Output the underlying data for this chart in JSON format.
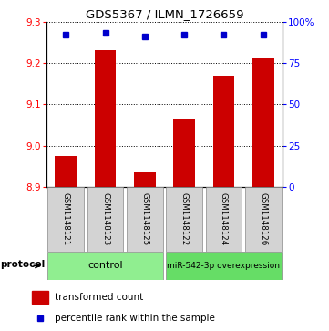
{
  "title": "GDS5367 / ILMN_1726659",
  "samples": [
    "GSM1148121",
    "GSM1148123",
    "GSM1148125",
    "GSM1148122",
    "GSM1148124",
    "GSM1148126"
  ],
  "transformed_counts": [
    8.975,
    9.23,
    8.935,
    9.065,
    9.17,
    9.21
  ],
  "percentile_ranks": [
    92,
    93,
    91,
    92,
    92,
    92
  ],
  "ylim_left": [
    8.9,
    9.3
  ],
  "ylim_right": [
    0,
    100
  ],
  "yticks_left": [
    8.9,
    9.0,
    9.1,
    9.2,
    9.3
  ],
  "yticks_right": [
    0,
    25,
    50,
    75,
    100
  ],
  "bar_color": "#cc0000",
  "marker_color": "#0000cc",
  "control_color": "#90ee90",
  "overexp_color": "#66dd66",
  "control_label": "control",
  "overexp_label": "miR-542-3p overexpression",
  "protocol_label": "protocol",
  "legend_bar_label": "transformed count",
  "legend_marker_label": "percentile rank within the sample"
}
